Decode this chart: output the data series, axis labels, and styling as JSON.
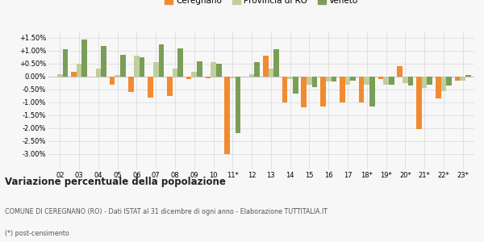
{
  "categories": [
    "02",
    "03",
    "04",
    "05",
    "06",
    "07",
    "08",
    "09",
    "10",
    "11*",
    "12",
    "13",
    "14",
    "15",
    "16",
    "17",
    "18*",
    "19*",
    "20*",
    "21*",
    "22*",
    "23*"
  ],
  "ceregnano": [
    0.0,
    0.2,
    0.0,
    -0.3,
    -0.6,
    -0.8,
    -0.75,
    -0.1,
    -0.05,
    -3.0,
    0.0,
    0.8,
    -1.0,
    -1.2,
    -1.15,
    -1.0,
    -1.0,
    -0.1,
    0.4,
    -2.05,
    -0.85,
    -0.15
  ],
  "provincia_ro": [
    0.1,
    0.5,
    0.3,
    0.05,
    0.8,
    0.55,
    0.3,
    0.2,
    0.55,
    -0.05,
    0.1,
    0.3,
    -0.1,
    -0.3,
    -0.2,
    -0.3,
    -0.3,
    -0.3,
    -0.25,
    -0.45,
    -0.55,
    -0.15
  ],
  "veneto": [
    1.05,
    1.45,
    1.2,
    0.85,
    0.75,
    1.25,
    1.1,
    0.6,
    0.5,
    -2.2,
    0.55,
    1.05,
    -0.65,
    -0.4,
    -0.2,
    -0.15,
    -1.15,
    -0.3,
    -0.35,
    -0.3,
    -0.35,
    0.05
  ],
  "color_ceregnano": "#f28a30",
  "color_provincia": "#c0ce9e",
  "color_veneto": "#7a9e57",
  "title": "Variazione percentuale della popolazione",
  "subtitle1": "COMUNE DI CEREGNANO (RO) - Dati ISTAT al 31 dicembre di ogni anno - Elaborazione TUTTITALIA.IT",
  "subtitle2": "(*) post-censimento",
  "legend_labels": [
    "Ceregnano",
    "Provincia di RO",
    "Veneto"
  ],
  "ylim": [
    -3.6,
    1.75
  ],
  "yticks": [
    -3.0,
    -2.5,
    -2.0,
    -1.5,
    -1.0,
    -0.5,
    0.0,
    0.5,
    1.0,
    1.5
  ],
  "ytick_labels": [
    "-3.00%",
    "-2.50%",
    "-2.00%",
    "-1.50%",
    "-1.00%",
    "-0.50%",
    "0.00%",
    "+0.50%",
    "+1.00%",
    "+1.50%"
  ],
  "bg_color": "#f7f7f7",
  "bar_width": 0.28
}
